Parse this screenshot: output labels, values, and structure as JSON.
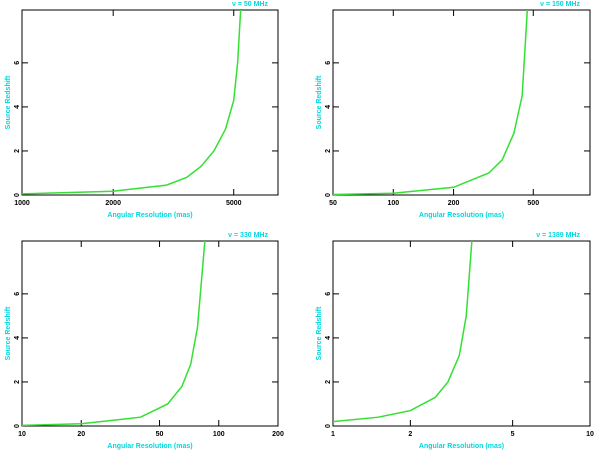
{
  "chart_data": [
    {
      "type": "line",
      "annotation": "ν =    50 MHz",
      "x_label": "Angular Resolution (mas)",
      "y_label": "Source Redshift",
      "x": [
        1000,
        2000,
        3000,
        3500,
        3900,
        4300,
        4700,
        5000,
        5150,
        5270
      ],
      "series": [
        {
          "name": "z",
          "color": "#33e033",
          "values": [
            0.05,
            0.17,
            0.45,
            0.8,
            1.3,
            2,
            3,
            4.3,
            6,
            8.4
          ]
        }
      ],
      "xlim": [
        1000,
        7000
      ],
      "xticks": [
        1000,
        2000,
        5000
      ],
      "x_log": true,
      "ylim": [
        0,
        8.4
      ],
      "yticks": [
        0,
        2,
        4,
        6
      ]
    },
    {
      "type": "line",
      "annotation": "ν =    150 MHz",
      "x_label": "Angular Resolution (mas)",
      "y_label": "Source Redshift",
      "x": [
        50,
        100,
        200,
        300,
        350,
        400,
        440,
        467
      ],
      "series": [
        {
          "name": "z",
          "color": "#33e033",
          "values": [
            0.02,
            0.08,
            0.35,
            1.0,
            1.6,
            2.8,
            4.5,
            8.4
          ]
        }
      ],
      "xlim": [
        50,
        960
      ],
      "xticks": [
        50,
        100,
        200,
        500
      ],
      "x_log": true,
      "ylim": [
        0,
        8.4
      ],
      "yticks": [
        0,
        2,
        4,
        6
      ]
    },
    {
      "type": "line",
      "annotation": "ν =    330 MHz",
      "x_label": "Angular Resolution (mas)",
      "y_label": "Source Redshift",
      "x": [
        10,
        20,
        40,
        55,
        65,
        72,
        78,
        85
      ],
      "series": [
        {
          "name": "z",
          "color": "#33e033",
          "values": [
            0.03,
            0.1,
            0.4,
            1.0,
            1.8,
            2.8,
            4.5,
            8.4
          ]
        }
      ],
      "xlim": [
        10,
        200
      ],
      "xticks": [
        10,
        20,
        50,
        100,
        200
      ],
      "x_log": true,
      "ylim": [
        0,
        8.4
      ],
      "yticks": [
        0,
        2,
        4,
        6
      ]
    },
    {
      "type": "line",
      "annotation": "ν =    1389 MHz",
      "x_label": "Angular Resolution (mas)",
      "y_label": "Source Redshift",
      "x": [
        1,
        1.5,
        2,
        2.5,
        2.8,
        3.1,
        3.3,
        3.47
      ],
      "series": [
        {
          "name": "z",
          "color": "#33e033",
          "values": [
            0.2,
            0.4,
            0.7,
            1.3,
            2.0,
            3.2,
            5,
            8.4
          ]
        }
      ],
      "xlim": [
        1,
        10
      ],
      "xticks": [
        1,
        2,
        5,
        10
      ],
      "x_log": true,
      "ylim": [
        0,
        8.4
      ],
      "yticks": [
        0,
        2,
        4,
        6
      ]
    }
  ]
}
